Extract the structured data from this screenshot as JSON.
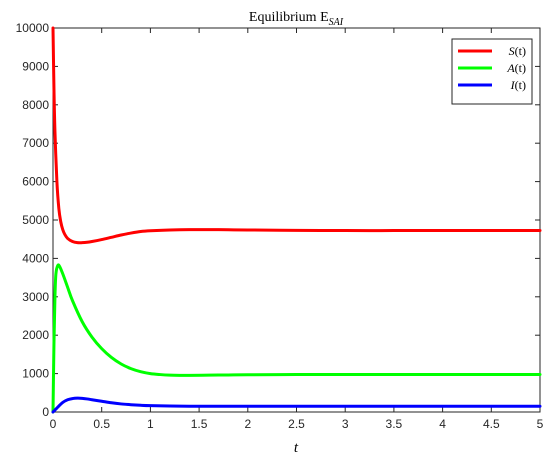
{
  "chart_data": {
    "type": "line",
    "title": "Equilibrium E",
    "title_subscript": "SAI",
    "xlabel": "t",
    "ylabel": "",
    "xlim": [
      0,
      5
    ],
    "ylim": [
      0,
      10000
    ],
    "xticks": [
      "0",
      "0.5",
      "1",
      "1.5",
      "2",
      "2.5",
      "3",
      "3.5",
      "4",
      "4.5",
      "5"
    ],
    "yticks": [
      "0",
      "1000",
      "2000",
      "3000",
      "4000",
      "5000",
      "6000",
      "7000",
      "8000",
      "9000",
      "10000"
    ],
    "grid": false,
    "legend_position": "top-right",
    "series": [
      {
        "name": "S(t)",
        "color": "#ff0000",
        "x": [
          0,
          0.01,
          0.02,
          0.04,
          0.06,
          0.08,
          0.1,
          0.12,
          0.15,
          0.2,
          0.25,
          0.3,
          0.35,
          0.4,
          0.5,
          0.6,
          0.7,
          0.8,
          0.9,
          1.0,
          1.2,
          1.4,
          1.6,
          1.8,
          2.0,
          2.5,
          3.0,
          3.5,
          4.0,
          4.5,
          5.0
        ],
        "y": [
          10000,
          8400,
          7300,
          6000,
          5300,
          4950,
          4750,
          4630,
          4520,
          4440,
          4410,
          4410,
          4420,
          4440,
          4490,
          4550,
          4610,
          4660,
          4700,
          4720,
          4740,
          4750,
          4750,
          4745,
          4740,
          4730,
          4725,
          4725,
          4725,
          4725,
          4725
        ]
      },
      {
        "name": "A(t)",
        "color": "#00ff00",
        "x": [
          0,
          0.01,
          0.02,
          0.03,
          0.05,
          0.07,
          0.1,
          0.15,
          0.2,
          0.3,
          0.4,
          0.5,
          0.6,
          0.7,
          0.8,
          0.9,
          1.0,
          1.1,
          1.2,
          1.3,
          1.4,
          1.6,
          1.8,
          2.0,
          2.5,
          3.0,
          3.5,
          4.0,
          4.5,
          5.0
        ],
        "y": [
          0,
          1800,
          3000,
          3600,
          3820,
          3780,
          3600,
          3250,
          2900,
          2350,
          1950,
          1650,
          1420,
          1250,
          1130,
          1050,
          1000,
          975,
          960,
          955,
          955,
          960,
          965,
          970,
          975,
          975,
          975,
          975,
          975,
          975
        ]
      },
      {
        "name": "I(t)",
        "color": "#0000ff",
        "x": [
          0,
          0.05,
          0.1,
          0.15,
          0.2,
          0.25,
          0.3,
          0.35,
          0.4,
          0.5,
          0.6,
          0.7,
          0.8,
          0.9,
          1.0,
          1.2,
          1.4,
          1.6,
          2.0,
          2.5,
          3.0,
          3.5,
          4.0,
          4.5,
          5.0
        ],
        "y": [
          0,
          130,
          250,
          320,
          350,
          360,
          355,
          340,
          320,
          280,
          240,
          210,
          190,
          175,
          165,
          155,
          150,
          150,
          150,
          150,
          150,
          150,
          150,
          150,
          150
        ]
      }
    ]
  }
}
